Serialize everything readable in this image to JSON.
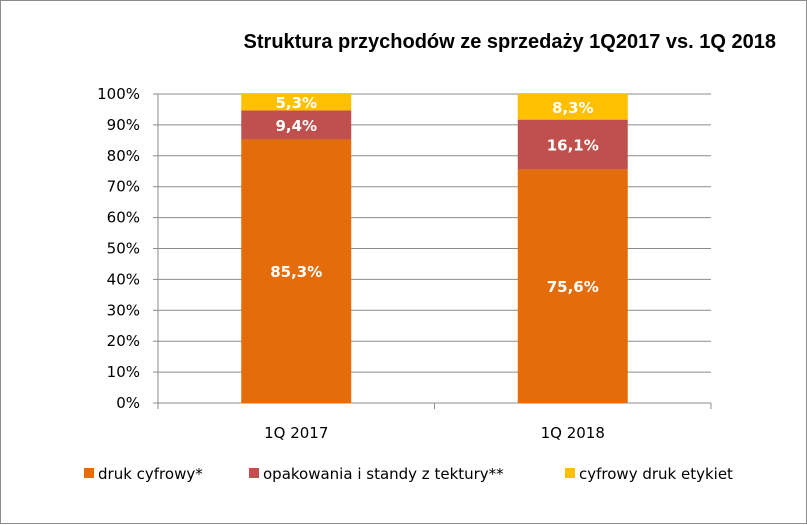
{
  "chart_data": {
    "type": "bar",
    "stacked": true,
    "title": "Struktura przychodów ze sprzedaży 1Q2017 vs. 1Q 2018",
    "categories": [
      "1Q 2017",
      "1Q 2018"
    ],
    "ylim": [
      0,
      100
    ],
    "y_ticks": [
      "0%",
      "10%",
      "20%",
      "30%",
      "40%",
      "50%",
      "60%",
      "70%",
      "80%",
      "90%",
      "100%"
    ],
    "grid": true,
    "legend_position": "bottom",
    "series": [
      {
        "name": "druk cyfrowy*",
        "color": "#E46C0A",
        "values": [
          85.3,
          75.6
        ],
        "labels": [
          "85,3%",
          "75,6%"
        ]
      },
      {
        "name": "opakowania i standy z tektury**",
        "color": "#C0504D",
        "values": [
          9.4,
          16.1
        ],
        "labels": [
          "9,4%",
          "16,1%"
        ]
      },
      {
        "name": "cyfrowy druk etykiet",
        "color": "#FFC000",
        "values": [
          5.3,
          8.3
        ],
        "labels": [
          "5,3%",
          "8,3%"
        ]
      }
    ]
  }
}
